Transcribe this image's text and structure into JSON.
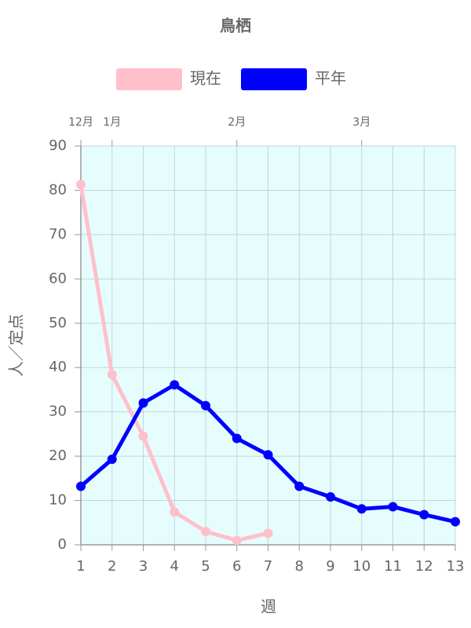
{
  "chart_data": {
    "type": "line",
    "title": "鳥栖",
    "x": [
      1,
      2,
      3,
      4,
      5,
      6,
      7,
      8,
      9,
      10,
      11,
      12,
      13
    ],
    "xlim": [
      1,
      13
    ],
    "xticks": [
      1,
      2,
      3,
      4,
      5,
      6,
      7,
      8,
      9,
      10,
      11,
      12,
      13
    ],
    "x2ticks": [
      {
        "value": 1,
        "label": "12月"
      },
      {
        "value": 2,
        "label": "1月"
      },
      {
        "value": 6,
        "label": "2月"
      },
      {
        "value": 10,
        "label": "3月"
      }
    ],
    "ylim": [
      0,
      90
    ],
    "yticks": [
      0,
      10,
      20,
      30,
      40,
      50,
      60,
      70,
      80,
      90
    ],
    "xlabel": "週",
    "ylabel": "人／定点",
    "grid": true,
    "legend": "top",
    "background": "#e6fdfe",
    "series": [
      {
        "name": "現在",
        "color": "#ffc0cb",
        "values": [
          81.3,
          38.4,
          24.5,
          7.4,
          3.0,
          1.0,
          2.6,
          null,
          null,
          null,
          null,
          null,
          null
        ]
      },
      {
        "name": "平年",
        "color": "#0000ff",
        "values": [
          13.2,
          19.3,
          32.0,
          36.1,
          31.4,
          24.0,
          20.3,
          13.2,
          10.8,
          8.1,
          8.6,
          6.8,
          5.2
        ]
      }
    ]
  }
}
